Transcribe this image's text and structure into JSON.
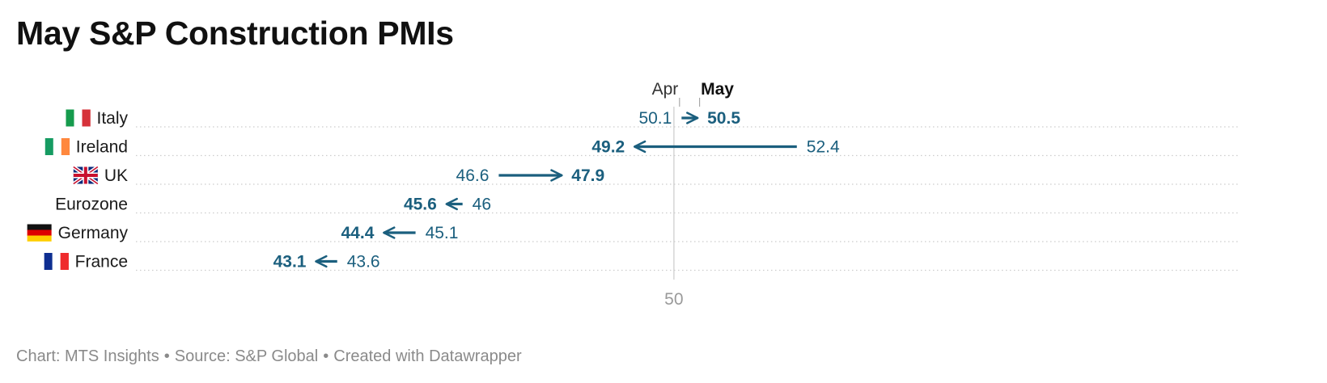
{
  "title": "May S&P Construction PMIs",
  "footer": {
    "chart_credit": "Chart: MTS Insights",
    "source": "Source: S&P Global",
    "created": "Created with Datawrapper",
    "separator": "•"
  },
  "colors": {
    "accent": "#1b5f7e",
    "reference_line": "#d6d6d6",
    "gridline": "#cccccc",
    "axis_label": "#9a9a9a"
  },
  "chart_data": {
    "type": "arrow",
    "title": "May S&P Construction PMIs",
    "series_labels": {
      "start": "Apr",
      "end": "May"
    },
    "reference_value": 50,
    "x_ticks": [
      50
    ],
    "xlim": [
      39.7,
      60.8
    ],
    "rows": [
      {
        "label": "Italy",
        "flag": "italy-flag",
        "start": 50.1,
        "end": 50.5,
        "start_label": "50.1",
        "end_label": "50.5"
      },
      {
        "label": "Ireland",
        "flag": "ireland-flag",
        "start": 52.4,
        "end": 49.2,
        "start_label": "52.4",
        "end_label": "49.2"
      },
      {
        "label": "UK",
        "flag": "uk-flag",
        "start": 46.6,
        "end": 47.9,
        "start_label": "46.6",
        "end_label": "47.9"
      },
      {
        "label": "Eurozone",
        "flag": "",
        "start": 46.0,
        "end": 45.6,
        "start_label": "46",
        "end_label": "45.6"
      },
      {
        "label": "Germany",
        "flag": "germany-flag",
        "start": 45.1,
        "end": 44.4,
        "start_label": "45.1",
        "end_label": "44.4"
      },
      {
        "label": "France",
        "flag": "france-flag",
        "start": 43.6,
        "end": 43.1,
        "start_label": "43.6",
        "end_label": "43.1"
      }
    ]
  }
}
